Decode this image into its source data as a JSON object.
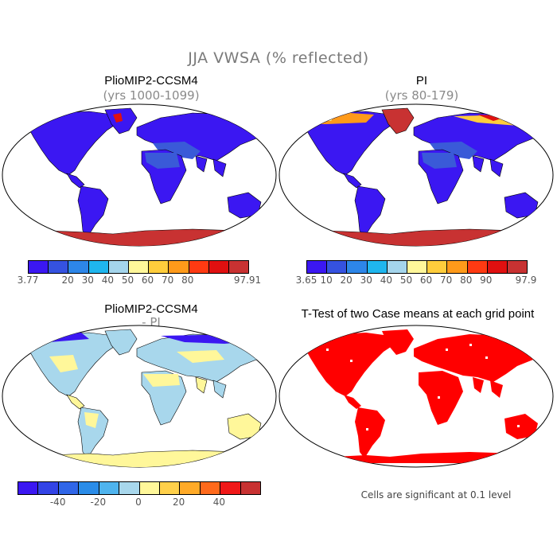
{
  "figure": {
    "title": "JJA VWSA (% reflected)"
  },
  "panels": {
    "top_left": {
      "title": "PlioMIP2-CCSM4",
      "subtitle": "(yrs 1000-1099)",
      "colorbar": {
        "colors": [
          "#3b17f2",
          "#3552e0",
          "#2d86e8",
          "#1fb6ee",
          "#a4d5ec",
          "#fff79a",
          "#ffcd3c",
          "#ff9a1a",
          "#ff3a12",
          "#e01010",
          "#c83232"
        ],
        "tick_labels": [
          "3.77",
          "20",
          "30",
          "40",
          "50",
          "60",
          "70",
          "80",
          "97.91"
        ]
      }
    },
    "top_right": {
      "title": "PI",
      "subtitle": "(yrs 80-179)",
      "colorbar": {
        "colors": [
          "#3b17f2",
          "#3552e0",
          "#2d86e8",
          "#1fb6ee",
          "#a4d5ec",
          "#fff79a",
          "#ffcd3c",
          "#ff9a1a",
          "#ff3a12",
          "#e01010",
          "#c83232"
        ],
        "tick_labels": [
          "3.65",
          "10",
          "20",
          "30",
          "40",
          "50",
          "60",
          "70",
          "80",
          "90",
          "97.9"
        ]
      }
    },
    "bottom_left": {
      "title": "PlioMIP2-CCSM4",
      "subtitle": "- PI",
      "colorbar": {
        "colors": [
          "#3b17f2",
          "#3344e6",
          "#3066e8",
          "#2a8ce8",
          "#4fb4ee",
          "#a8d7ec",
          "#fff79a",
          "#ffd04a",
          "#ffaa28",
          "#ff6a1c",
          "#f01818",
          "#c83232"
        ],
        "tick_labels": [
          "-40",
          "-20",
          "0",
          "20",
          "40"
        ]
      }
    },
    "bottom_right": {
      "title": "T-Test of two Case means at each grid point",
      "note": "Cells are significant at 0.1 level"
    }
  },
  "map_colors": {
    "dark_blue": "#3b17f2",
    "mid_blue": "#3a5ad8",
    "light_blue": "#a4d5ec",
    "pale_yellow": "#fff79a",
    "red": "#c83232",
    "signif_red": "#ff0000"
  },
  "icons": [
    "land-continent-shape",
    "antarctica-shape"
  ]
}
